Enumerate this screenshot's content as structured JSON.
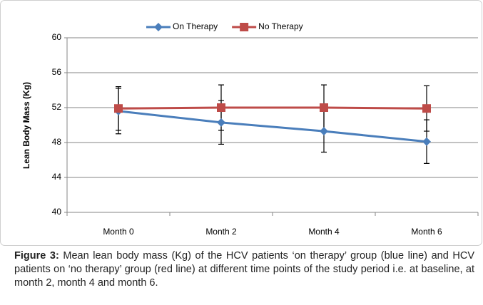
{
  "chart_data": {
    "type": "line",
    "categories": [
      "Month 0",
      "Month 2",
      "Month 4",
      "Month 6"
    ],
    "y_label": "Lean Body Mass  (Kg)",
    "ylim": [
      40,
      60
    ],
    "yticks": [
      40,
      44,
      48,
      52,
      56,
      60
    ],
    "grid": true,
    "legend": "top",
    "series": [
      {
        "name": "On Therapy",
        "color": "#4a7ebb",
        "marker": "diamond",
        "values": [
          51.6,
          50.3,
          49.3,
          48.1
        ],
        "errors": [
          2.6,
          2.5,
          2.4,
          2.5
        ]
      },
      {
        "name": "No Therapy",
        "color": "#be4b48",
        "marker": "square",
        "values": [
          51.9,
          52.0,
          52.0,
          51.9
        ],
        "errors": [
          2.5,
          2.6,
          2.6,
          2.6
        ]
      }
    ]
  },
  "caption": {
    "label": "Figure 3:",
    "text": "Mean lean body mass (Kg) of the HCV patients ‘on therapy’ group (blue line) and HCV patients on ‘no therapy’ group (red line) at different time points of the study period i.e. at baseline, at month 2, month 4 and month 6."
  }
}
